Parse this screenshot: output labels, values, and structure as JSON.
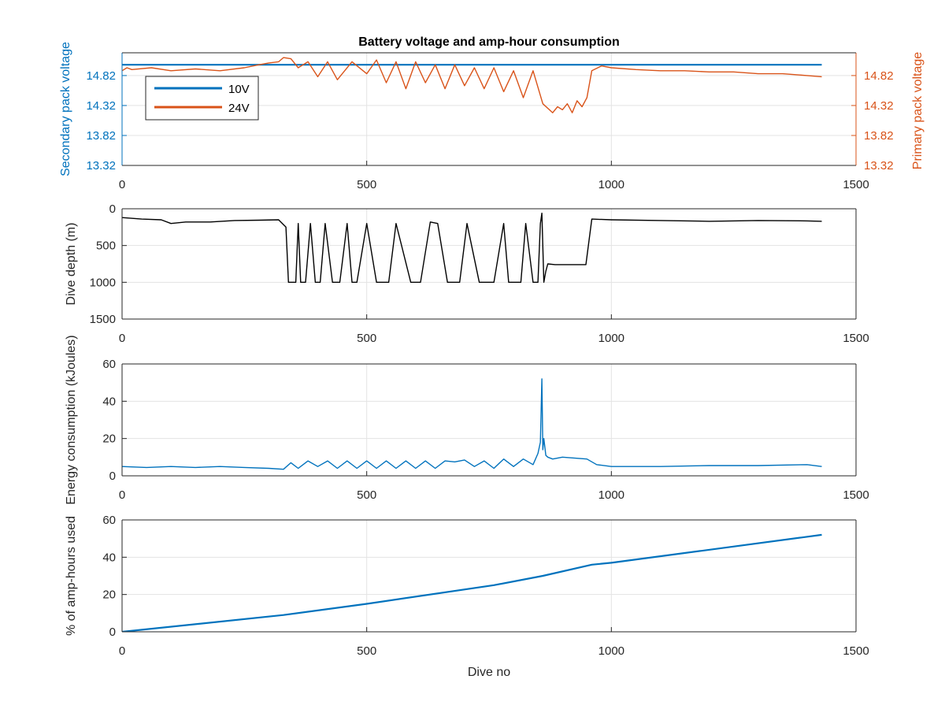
{
  "figure": {
    "xlabel": "Dive no"
  },
  "colors": {
    "blue": "#0072BD",
    "orange": "#D95319",
    "black": "#000000",
    "grid": "#e3e3e3",
    "axis": "#262626"
  },
  "chart_data": [
    {
      "type": "line",
      "title": "Battery voltage and amp-hour consumption",
      "xlabel": "",
      "ylabel": "Secondary pack voltage",
      "ylabel_right": "Primary pack voltage",
      "xlim": [
        0,
        1500
      ],
      "ylim": [
        13.32,
        15.2
      ],
      "ylim_right": [
        13.32,
        15.2
      ],
      "x_ticks": [
        "0",
        "500",
        "1000",
        "1500"
      ],
      "y_ticks": [
        "13.32",
        "13.82",
        "14.32",
        "14.82"
      ],
      "y_ticks_right": [
        "13.32",
        "13.82",
        "14.32",
        "14.82"
      ],
      "grid": true,
      "legend": "top-left",
      "series": [
        {
          "name": "10V",
          "axis": "left",
          "color": "#0072BD",
          "x": [
            0,
            1430
          ],
          "values": [
            15.0,
            15.0
          ]
        },
        {
          "name": "24V",
          "axis": "right",
          "color": "#D95319",
          "x": [
            0,
            10,
            20,
            60,
            100,
            150,
            200,
            250,
            280,
            300,
            320,
            330,
            345,
            360,
            380,
            400,
            420,
            440,
            470,
            500,
            520,
            540,
            560,
            580,
            600,
            620,
            640,
            660,
            680,
            700,
            720,
            740,
            760,
            780,
            800,
            820,
            840,
            860,
            880,
            890,
            900,
            910,
            920,
            930,
            940,
            950,
            960,
            980,
            1000,
            1050,
            1100,
            1150,
            1200,
            1250,
            1300,
            1350,
            1400,
            1430
          ],
          "values": [
            14.9,
            14.95,
            14.92,
            14.95,
            14.9,
            14.93,
            14.9,
            14.95,
            15.0,
            15.03,
            15.05,
            15.12,
            15.1,
            14.95,
            15.05,
            14.8,
            15.05,
            14.75,
            15.05,
            14.85,
            15.08,
            14.7,
            15.05,
            14.6,
            15.05,
            14.7,
            15.0,
            14.6,
            15.0,
            14.65,
            14.95,
            14.6,
            14.95,
            14.55,
            14.9,
            14.45,
            14.9,
            14.35,
            14.2,
            14.3,
            14.25,
            14.35,
            14.2,
            14.4,
            14.3,
            14.45,
            14.9,
            14.98,
            14.95,
            14.92,
            14.9,
            14.9,
            14.88,
            14.88,
            14.85,
            14.85,
            14.82,
            14.8
          ]
        }
      ]
    },
    {
      "type": "line",
      "title": "",
      "xlabel": "",
      "ylabel": "Dive depth (m)",
      "xlim": [
        0,
        1500
      ],
      "ylim": [
        1500,
        0
      ],
      "x_ticks": [
        "0",
        "500",
        "1000",
        "1500"
      ],
      "y_ticks": [
        "0",
        "500",
        "1000",
        "1500"
      ],
      "grid": true,
      "series": [
        {
          "color": "#000000",
          "x": [
            0,
            40,
            80,
            100,
            130,
            180,
            230,
            280,
            320,
            335,
            340,
            355,
            360,
            365,
            375,
            385,
            395,
            405,
            415,
            430,
            445,
            460,
            470,
            480,
            500,
            520,
            545,
            560,
            590,
            610,
            630,
            645,
            665,
            690,
            705,
            730,
            760,
            780,
            790,
            815,
            825,
            840,
            850,
            855,
            858,
            862,
            866,
            870,
            885,
            900,
            930,
            948,
            960,
            1000,
            1100,
            1200,
            1300,
            1400,
            1430
          ],
          "values": [
            120,
            140,
            150,
            200,
            180,
            180,
            160,
            155,
            150,
            250,
            1000,
            1000,
            200,
            1000,
            1000,
            200,
            1000,
            1000,
            200,
            1000,
            1000,
            200,
            1000,
            1000,
            200,
            1000,
            1000,
            200,
            1000,
            1000,
            180,
            200,
            1000,
            1000,
            200,
            1000,
            1000,
            200,
            1000,
            1000,
            200,
            1000,
            1000,
            200,
            60,
            1000,
            850,
            750,
            760,
            760,
            760,
            760,
            140,
            150,
            160,
            170,
            160,
            165,
            170
          ]
        }
      ]
    },
    {
      "type": "line",
      "title": "",
      "xlabel": "",
      "ylabel": "Energy consumption (kJoules)",
      "xlim": [
        0,
        1500
      ],
      "ylim": [
        0,
        60
      ],
      "x_ticks": [
        "0",
        "500",
        "1000",
        "1500"
      ],
      "y_ticks": [
        "0",
        "20",
        "40",
        "60"
      ],
      "grid": true,
      "series": [
        {
          "color": "#0072BD",
          "x": [
            0,
            50,
            100,
            150,
            200,
            250,
            300,
            330,
            345,
            360,
            380,
            400,
            420,
            440,
            460,
            480,
            500,
            520,
            540,
            560,
            580,
            600,
            620,
            640,
            660,
            680,
            700,
            720,
            740,
            760,
            780,
            800,
            820,
            840,
            850,
            855,
            858,
            860,
            862,
            866,
            870,
            880,
            900,
            950,
            970,
            1000,
            1100,
            1200,
            1300,
            1400,
            1430
          ],
          "values": [
            5,
            4.5,
            5,
            4.5,
            5,
            4.5,
            4,
            3.5,
            7,
            4,
            8,
            5,
            8,
            4,
            8,
            4,
            8,
            4,
            8,
            4,
            8,
            4,
            8,
            4,
            8,
            7.5,
            8.5,
            5,
            8,
            4,
            9,
            5,
            9,
            6,
            12,
            18,
            52,
            14,
            20,
            11,
            10,
            9,
            10,
            9,
            6,
            5,
            5,
            5.5,
            5.5,
            6,
            5
          ]
        }
      ]
    },
    {
      "type": "line",
      "title": "",
      "xlabel": "Dive no",
      "ylabel": "% of amp-hours used",
      "xlim": [
        0,
        1500
      ],
      "ylim": [
        0,
        60
      ],
      "x_ticks": [
        "0",
        "500",
        "1000",
        "1500"
      ],
      "y_ticks": [
        "0",
        "20",
        "40",
        "60"
      ],
      "grid": true,
      "series": [
        {
          "color": "#0072BD",
          "x": [
            0,
            330,
            500,
            760,
            860,
            960,
            1000,
            1430
          ],
          "values": [
            0,
            9,
            15,
            25,
            30,
            36,
            37,
            52
          ]
        }
      ]
    }
  ]
}
